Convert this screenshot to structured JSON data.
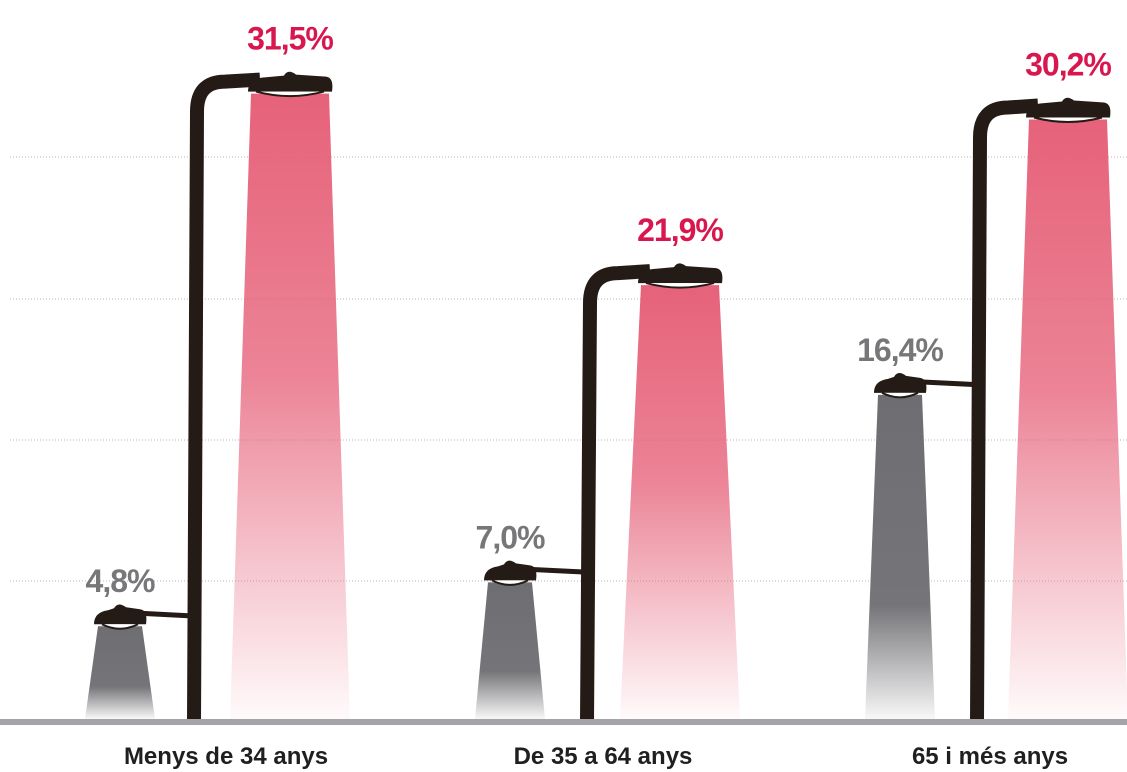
{
  "chart_data": {
    "type": "bar",
    "title": "",
    "xlabel": "",
    "ylabel": "",
    "ylim": [
      0,
      35
    ],
    "grid": true,
    "categories": [
      "Menys de 34 anys",
      "De 35 a 64 anys",
      "65 i més anys"
    ],
    "series": [
      {
        "values": [
          4.8,
          7.0,
          16.4
        ],
        "labels": [
          "4,8%",
          "7,0%",
          "16,4%"
        ],
        "color": "#6e6e72"
      },
      {
        "values": [
          31.5,
          21.9,
          30.2
        ],
        "labels": [
          "31,5%",
          "21,9%",
          "30,2%"
        ],
        "color": "#d8174e"
      }
    ],
    "colors": {
      "pole": "#241a16",
      "baseline": "#a3a3a8",
      "gray_label": "#77777a",
      "red_label": "#d8174e"
    }
  }
}
